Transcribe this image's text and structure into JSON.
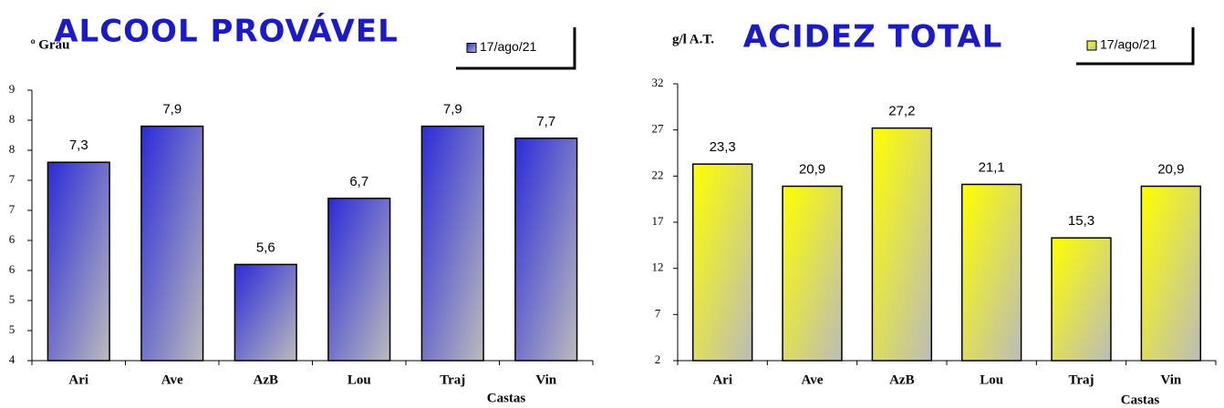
{
  "chart_data": [
    {
      "type": "bar",
      "title": "ALCOOL PROVÁVEL",
      "y_label": "º Grau",
      "x_label": "Castas",
      "categories": [
        "Ari",
        "Ave",
        "AzB",
        "Lou",
        "Traj",
        "Vin"
      ],
      "series": [
        {
          "name": "17/ago/21",
          "color": "#2b2bd8",
          "values": [
            7.3,
            7.9,
            5.6,
            6.7,
            7.9,
            7.7
          ],
          "value_labels": [
            "7,3",
            "7,9",
            "5,6",
            "6,7",
            "7,9",
            "7,7"
          ]
        }
      ],
      "ylim": [
        4,
        8.5
      ],
      "yticks": [
        4,
        {
          "value": 4.5,
          "label": "5"
        },
        5,
        {
          "value": 5.5,
          "label": "6"
        },
        6,
        {
          "value": 6.5,
          "label": "7"
        },
        7,
        {
          "value": 7.5,
          "label": "8"
        },
        8,
        {
          "value": 8.5,
          "label": "9"
        }
      ],
      "grid": false
    },
    {
      "type": "bar",
      "title": "ACIDEZ TOTAL",
      "y_label": "g/l A.T.",
      "x_label": "Castas",
      "categories": [
        "Ari",
        "Ave",
        "AzB",
        "Lou",
        "Traj",
        "Vin"
      ],
      "series": [
        {
          "name": "17/ago/21",
          "color": "#ffff00",
          "values": [
            23.3,
            20.9,
            27.2,
            21.1,
            15.3,
            20.9
          ],
          "value_labels": [
            "23,3",
            "20,9",
            "27,2",
            "21,1",
            "15,3",
            "20,9"
          ]
        }
      ],
      "ylim": [
        2,
        32
      ],
      "yticks": [
        2,
        7,
        12,
        17,
        22,
        27,
        32
      ],
      "grid": false
    }
  ]
}
